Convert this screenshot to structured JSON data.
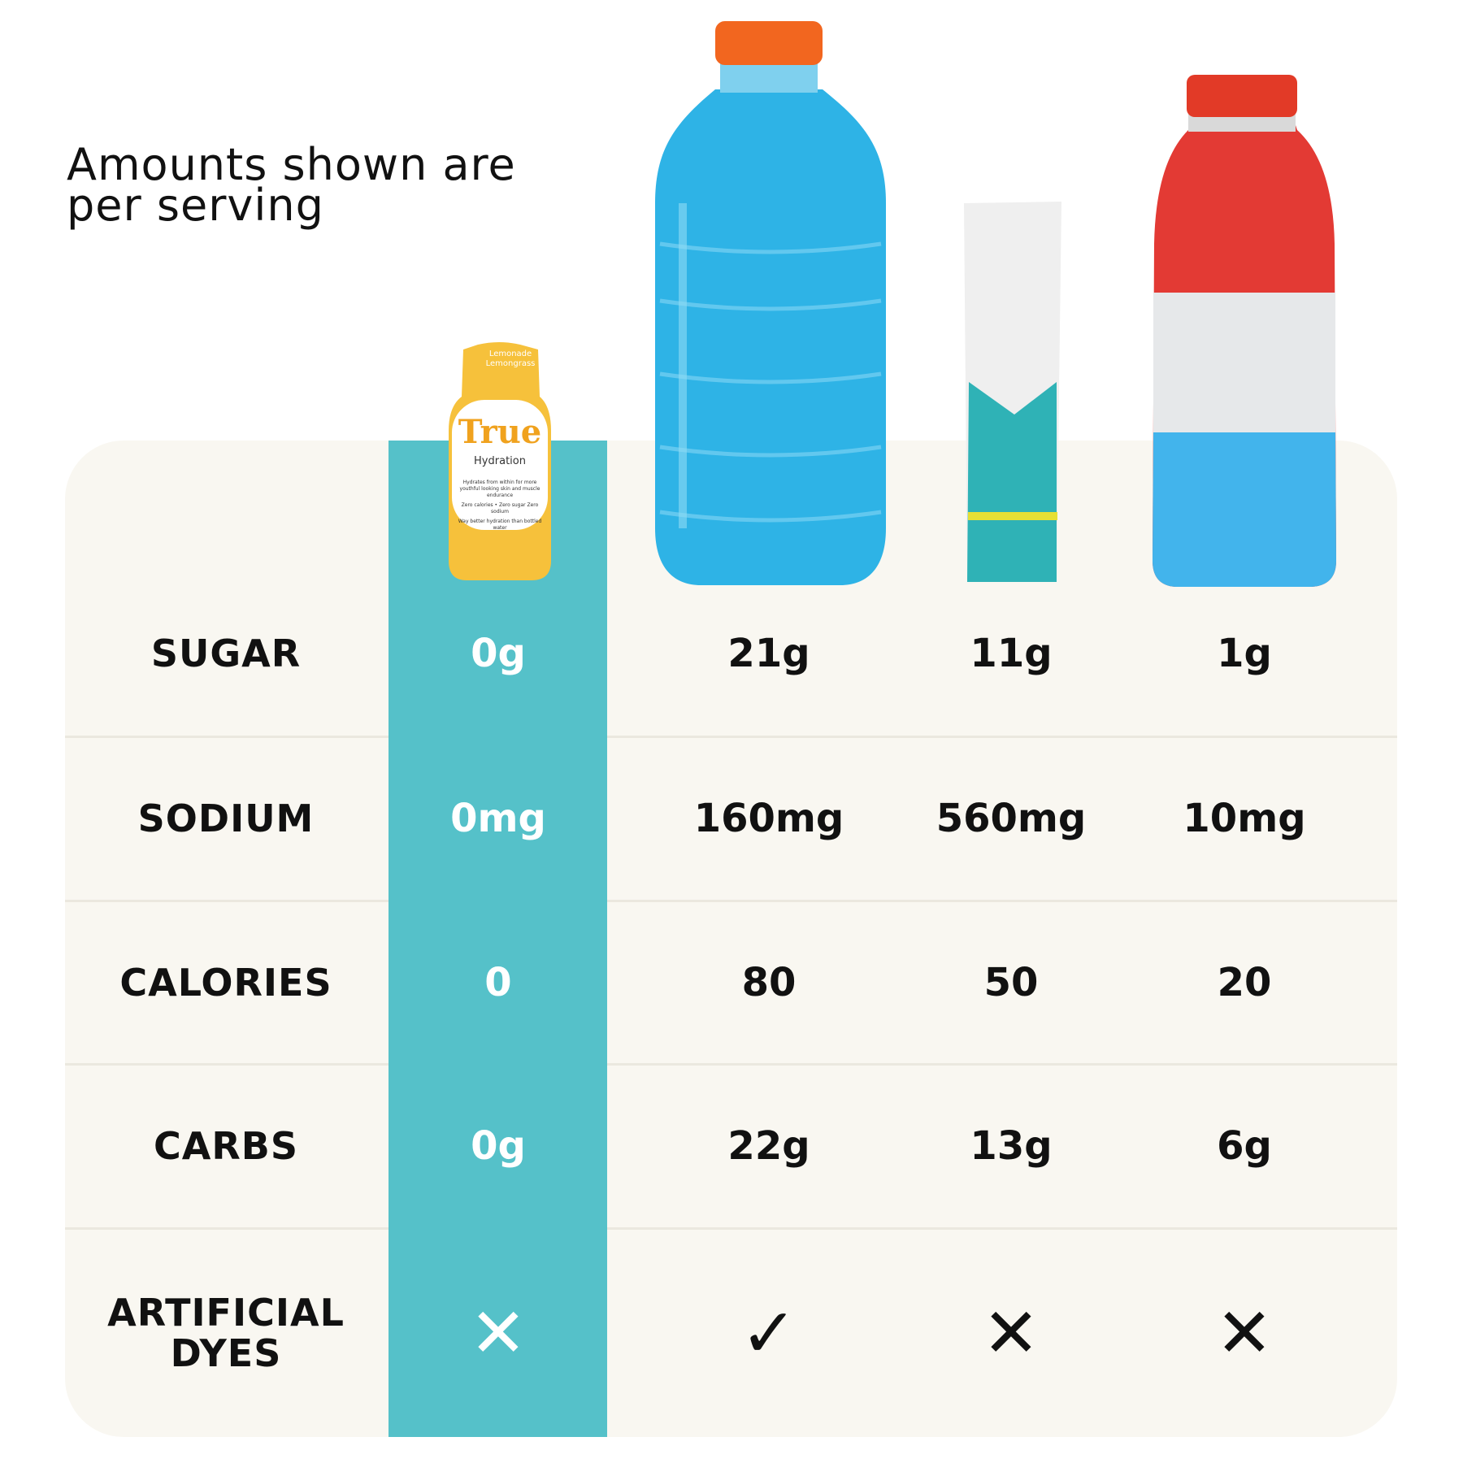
{
  "header": {
    "note": "Amounts shown are per serving"
  },
  "product_label": {
    "flavor": "Lemonade Lemongrass",
    "brand": "True",
    "name": "Hydration",
    "lines": [
      "Hydrates from within for more youthful looking skin and muscle endurance",
      "Zero calories • Zero sugar Zero sodium",
      "Way better hydration than bottled water"
    ]
  },
  "table": {
    "rows": [
      {
        "label": "SUGAR",
        "values": [
          "0g",
          "21g",
          "11g",
          "1g"
        ]
      },
      {
        "label": "SODIUM",
        "values": [
          "0mg",
          "160mg",
          "560mg",
          "10mg"
        ]
      },
      {
        "label": "CALORIES",
        "values": [
          "0",
          "80",
          "50",
          "20"
        ]
      },
      {
        "label": "CARBS",
        "values": [
          "0g",
          "22g",
          "13g",
          "6g"
        ]
      },
      {
        "label": "ARTIFICIAL DYES",
        "values": [
          "✕",
          "✓",
          "✕",
          "✕"
        ]
      }
    ]
  }
}
